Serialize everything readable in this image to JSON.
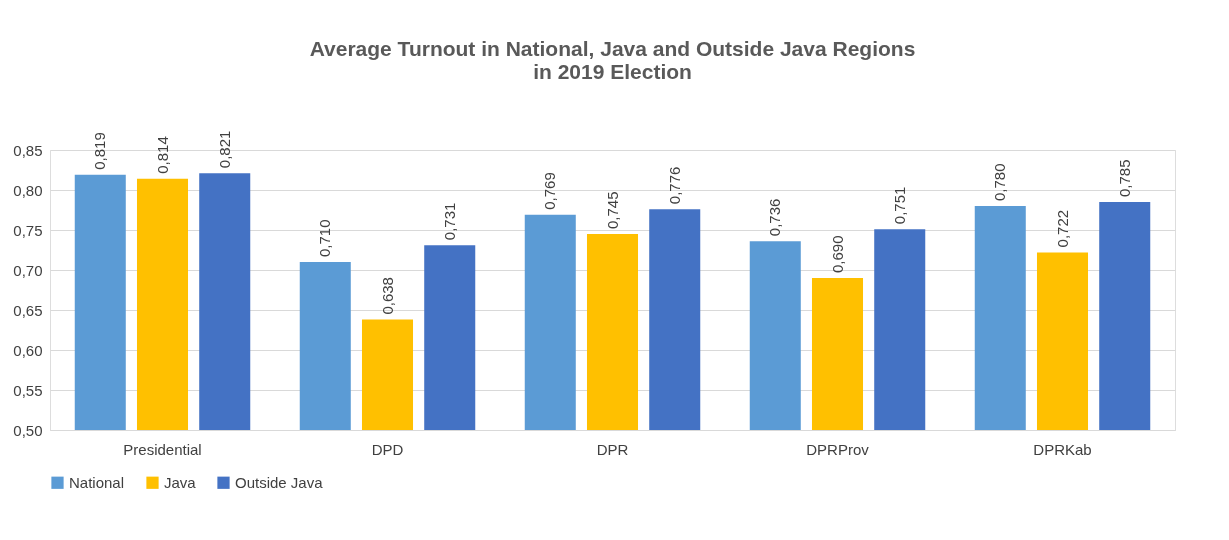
{
  "chart_data": {
    "type": "bar",
    "title": "Average Turnout in National, Java and Outside Java Regions\nin 2019 Election",
    "categories": [
      "Presidential",
      "DPD",
      "DPR",
      "DPRProv",
      "DPRKab"
    ],
    "series": [
      {
        "name": "National",
        "color": "#5b9bd5",
        "values": [
          0.819,
          0.71,
          0.769,
          0.736,
          0.78
        ],
        "value_labels": [
          "0,819",
          "0,710",
          "0,769",
          "0,736",
          "0,780"
        ]
      },
      {
        "name": "Java",
        "color": "#ffc000",
        "values": [
          0.814,
          0.638,
          0.745,
          0.69,
          0.722
        ],
        "value_labels": [
          "0,814",
          "0,638",
          "0,745",
          "0,690",
          "0,722"
        ]
      },
      {
        "name": "Outside Java",
        "color": "#4472c4",
        "values": [
          0.821,
          0.731,
          0.776,
          0.751,
          0.785
        ],
        "value_labels": [
          "0,821",
          "0,731",
          "0,776",
          "0,751",
          "0,785"
        ]
      }
    ],
    "ylim": [
      0.5,
      0.85
    ],
    "yticks": [
      {
        "value": 0.5,
        "label": "0,50"
      },
      {
        "value": 0.55,
        "label": "0,55"
      },
      {
        "value": 0.6,
        "label": "0,60"
      },
      {
        "value": 0.65,
        "label": "0,65"
      },
      {
        "value": 0.7,
        "label": "0,70"
      },
      {
        "value": 0.75,
        "label": "0,75"
      },
      {
        "value": 0.8,
        "label": "0,80"
      },
      {
        "value": 0.85,
        "label": "0,85"
      }
    ],
    "grid": "y",
    "legend": "bottom"
  }
}
